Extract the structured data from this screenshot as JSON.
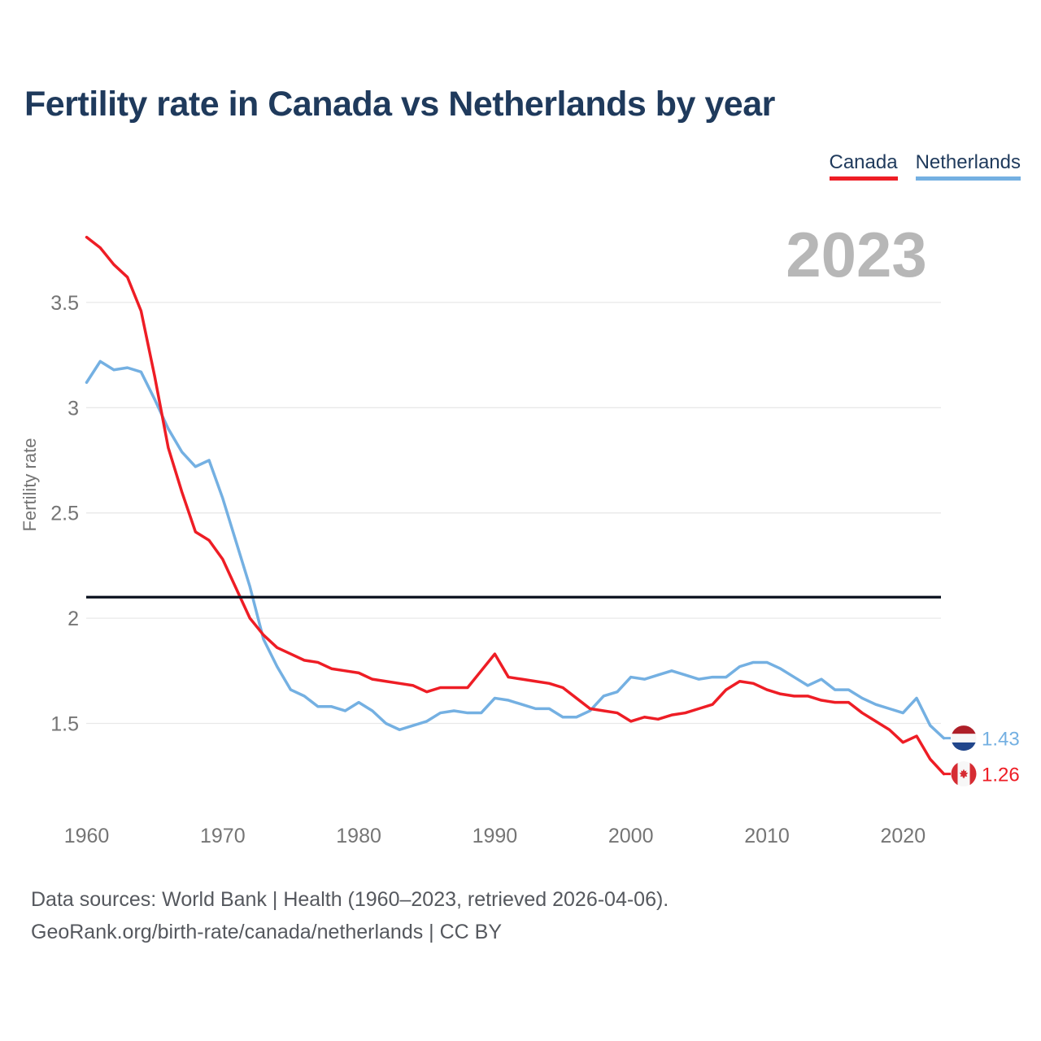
{
  "page": {
    "title": "Fertility rate in Canada vs Netherlands by year",
    "watermark": "2023",
    "footer_line1": "Data sources: World Bank | Health (1960–2023, retrieved 2026-04-06).",
    "footer_line2": "GeoRank.org/birth-rate/canada/netherlands | CC BY"
  },
  "legend": {
    "items": [
      {
        "label": "Canada",
        "color": "#ee1d25"
      },
      {
        "label": "Netherlands",
        "color": "#74b0e2"
      }
    ]
  },
  "colors": {
    "title_text": "#1f3a5c",
    "axis_text": "#757575",
    "gridline": "#e8e8e8",
    "watermark": "#b7b7b7",
    "footer_text": "#55585e",
    "canada": "#ee1d25",
    "netherlands": "#74b0e2",
    "reference_line": "#0b121f"
  },
  "chart_data": {
    "type": "line",
    "title": "Fertility rate in Canada vs Netherlands by year",
    "xlabel": "",
    "ylabel": "Fertility rate",
    "x_ticks": [
      1960,
      1970,
      1980,
      1990,
      2000,
      2010,
      2020
    ],
    "y_ticks": [
      1.5,
      2,
      2.5,
      3,
      3.5
    ],
    "xlim": [
      1960,
      2023
    ],
    "ylim": [
      1.15,
      3.9
    ],
    "grid": true,
    "legend_position": "top-right",
    "reference_line": {
      "value": 2.1
    },
    "years": [
      1960,
      1961,
      1962,
      1963,
      1964,
      1965,
      1966,
      1967,
      1968,
      1969,
      1970,
      1971,
      1972,
      1973,
      1974,
      1975,
      1976,
      1977,
      1978,
      1979,
      1980,
      1981,
      1982,
      1983,
      1984,
      1985,
      1986,
      1987,
      1988,
      1989,
      1990,
      1991,
      1992,
      1993,
      1994,
      1995,
      1996,
      1997,
      1998,
      1999,
      2000,
      2001,
      2002,
      2003,
      2004,
      2005,
      2006,
      2007,
      2008,
      2009,
      2010,
      2011,
      2012,
      2013,
      2014,
      2015,
      2016,
      2017,
      2018,
      2019,
      2020,
      2021,
      2022,
      2023
    ],
    "series": [
      {
        "name": "Canada",
        "color": "#ee1d25",
        "end_label": "1.26",
        "values": [
          3.81,
          3.76,
          3.68,
          3.62,
          3.46,
          3.15,
          2.81,
          2.6,
          2.41,
          2.37,
          2.28,
          2.14,
          2.0,
          1.92,
          1.86,
          1.83,
          1.8,
          1.79,
          1.76,
          1.75,
          1.74,
          1.71,
          1.7,
          1.69,
          1.68,
          1.65,
          1.67,
          1.67,
          1.67,
          1.75,
          1.83,
          1.72,
          1.71,
          1.7,
          1.69,
          1.67,
          1.62,
          1.57,
          1.56,
          1.55,
          1.51,
          1.53,
          1.52,
          1.54,
          1.55,
          1.57,
          1.59,
          1.66,
          1.7,
          1.69,
          1.66,
          1.64,
          1.63,
          1.63,
          1.61,
          1.6,
          1.6,
          1.55,
          1.51,
          1.47,
          1.41,
          1.44,
          1.33,
          1.26
        ]
      },
      {
        "name": "Netherlands",
        "color": "#74b0e2",
        "end_label": "1.43",
        "values": [
          3.12,
          3.22,
          3.18,
          3.19,
          3.17,
          3.04,
          2.9,
          2.79,
          2.72,
          2.75,
          2.57,
          2.36,
          2.15,
          1.9,
          1.77,
          1.66,
          1.63,
          1.58,
          1.58,
          1.56,
          1.6,
          1.56,
          1.5,
          1.47,
          1.49,
          1.51,
          1.55,
          1.56,
          1.55,
          1.55,
          1.62,
          1.61,
          1.59,
          1.57,
          1.57,
          1.53,
          1.53,
          1.56,
          1.63,
          1.65,
          1.72,
          1.71,
          1.73,
          1.75,
          1.73,
          1.71,
          1.72,
          1.72,
          1.77,
          1.79,
          1.79,
          1.76,
          1.72,
          1.68,
          1.71,
          1.66,
          1.66,
          1.62,
          1.59,
          1.57,
          1.55,
          1.62,
          1.49,
          1.43
        ]
      }
    ]
  }
}
